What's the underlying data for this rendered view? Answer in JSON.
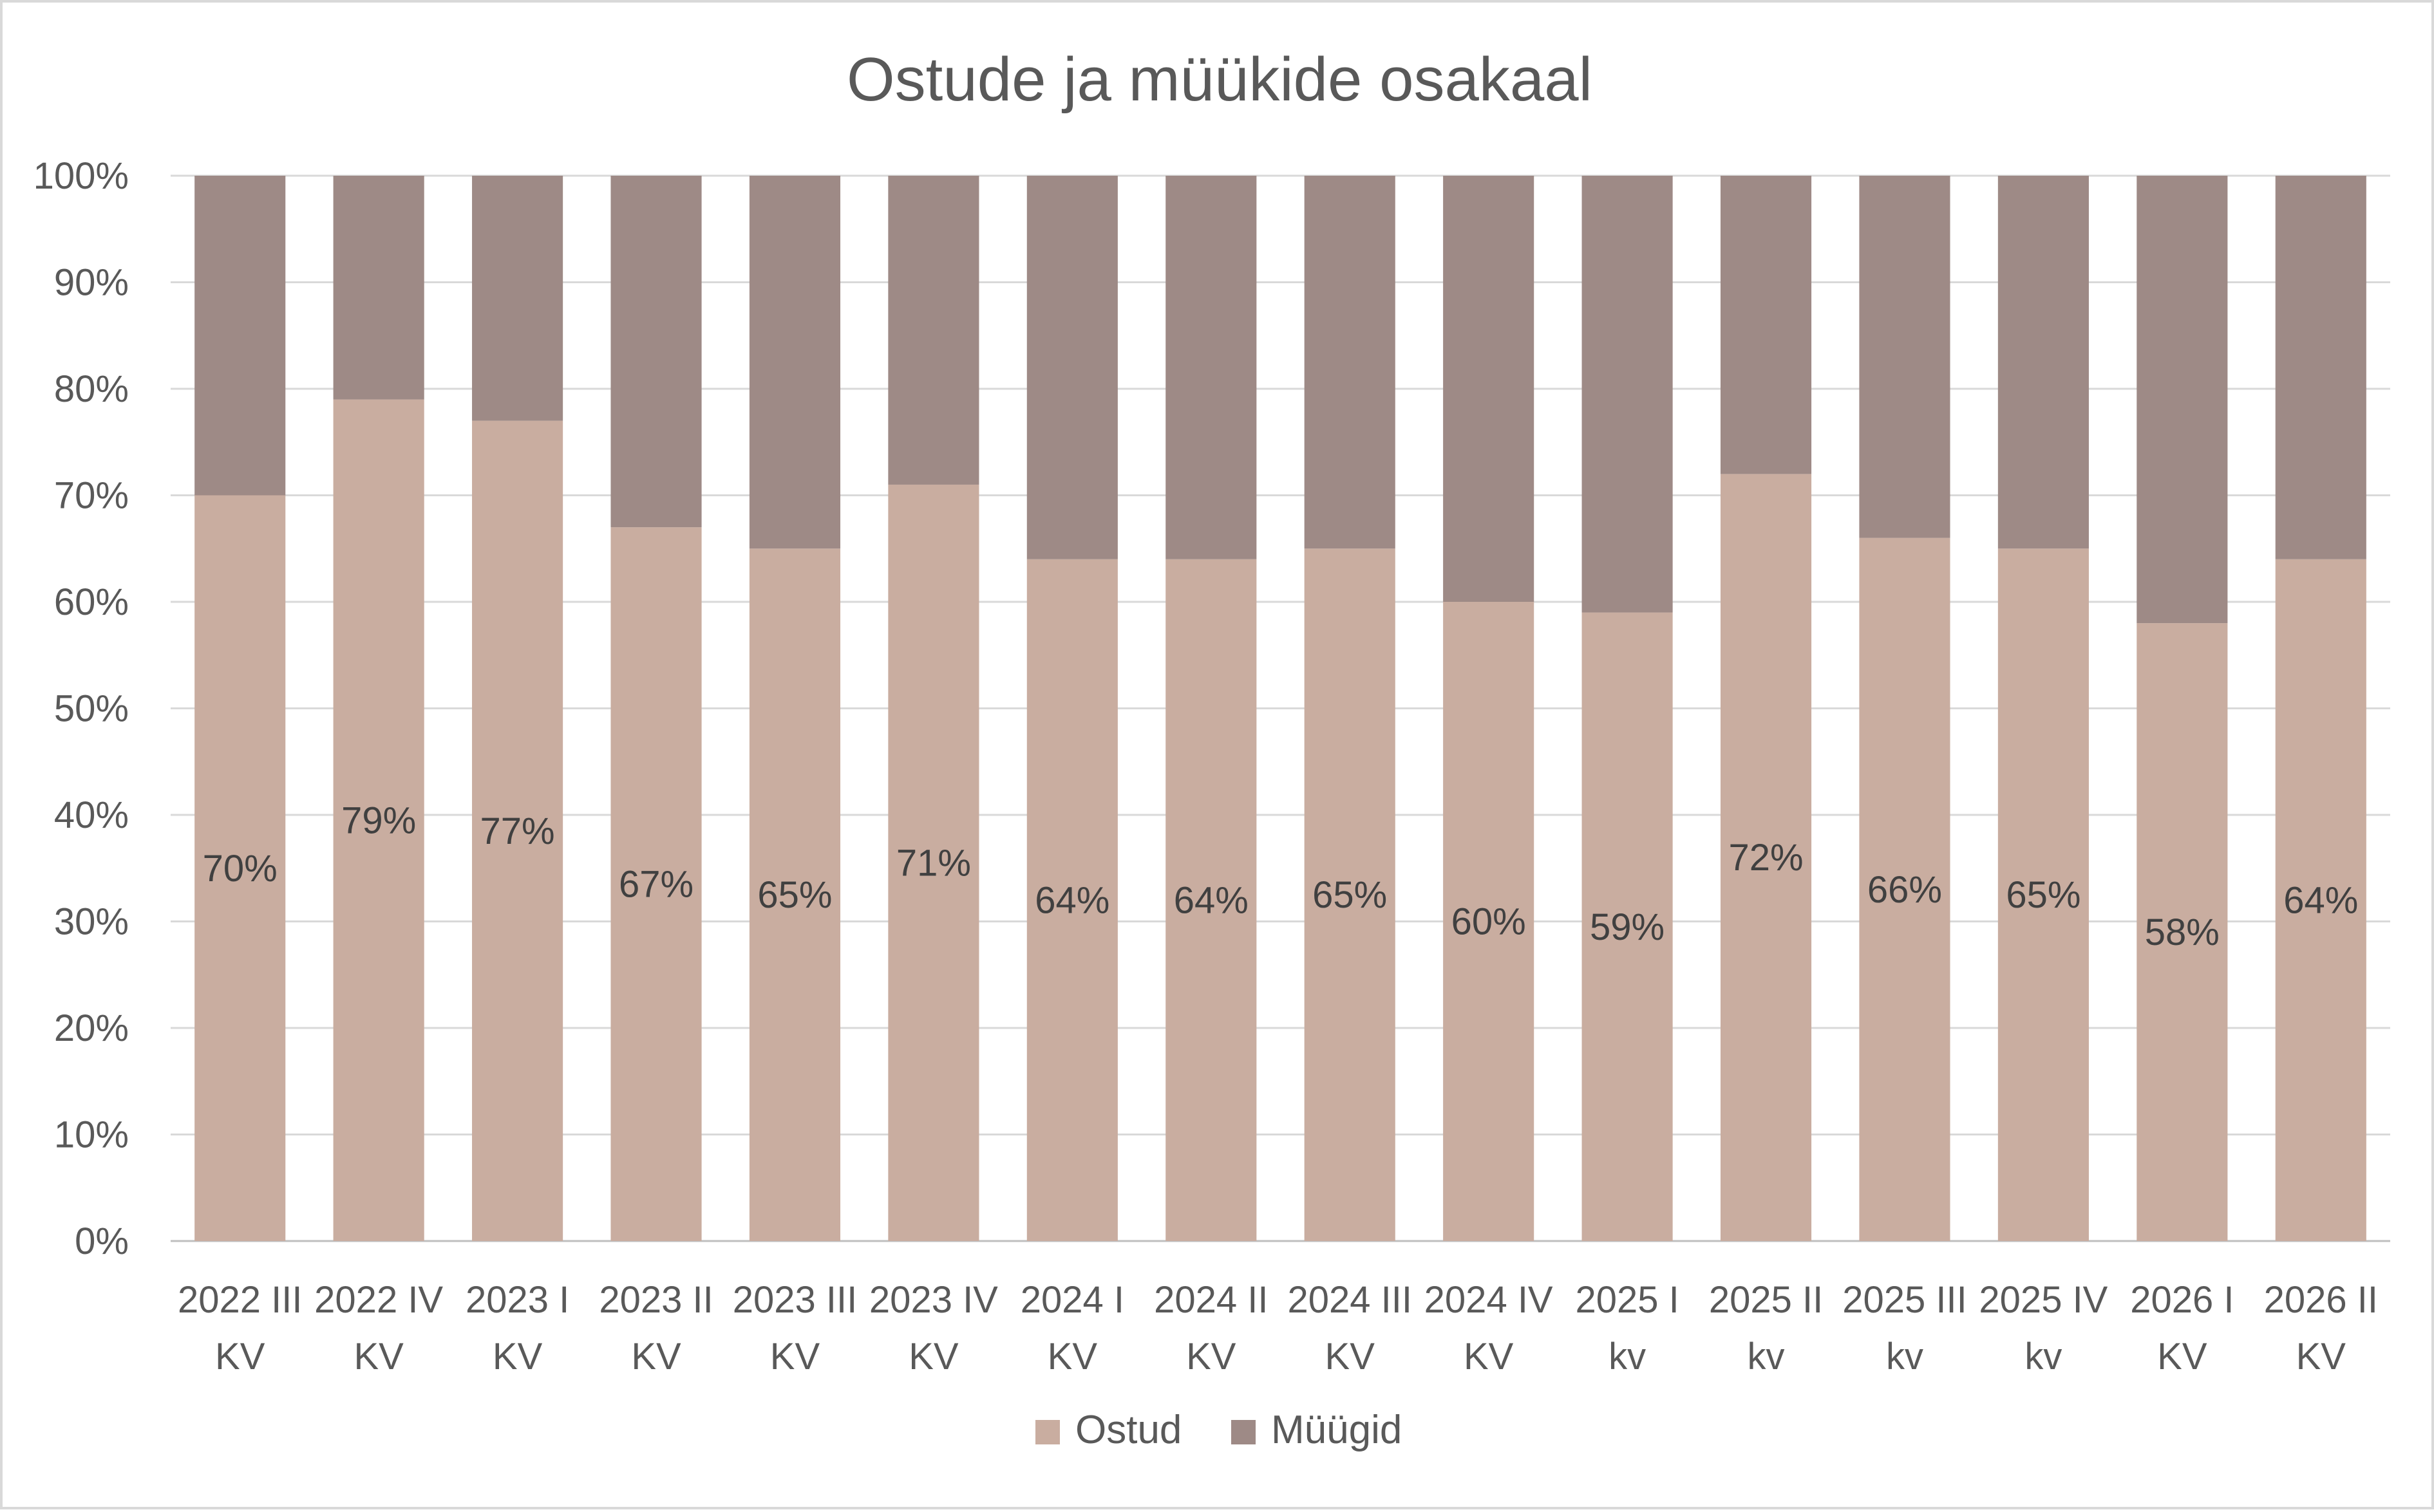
{
  "chart_data": {
    "type": "bar",
    "stacked": true,
    "percent_stacked": true,
    "title": "Ostude ja müükide osakaal",
    "xlabel": "",
    "ylabel": "",
    "ylim": [
      0,
      100
    ],
    "y_ticks": [
      "0%",
      "10%",
      "20%",
      "30%",
      "40%",
      "50%",
      "60%",
      "70%",
      "80%",
      "90%",
      "100%"
    ],
    "grid": true,
    "legend_position": "bottom",
    "categories": [
      [
        "2022 III",
        "KV"
      ],
      [
        "2022 IV",
        "KV"
      ],
      [
        "2023 I",
        "KV"
      ],
      [
        "2023 II",
        "KV"
      ],
      [
        "2023 III",
        "KV"
      ],
      [
        "2023 IV",
        "KV"
      ],
      [
        "2024 I",
        "KV"
      ],
      [
        "2024 II",
        "KV"
      ],
      [
        "2024 III",
        "KV"
      ],
      [
        "2024 IV",
        "KV"
      ],
      [
        "2025 I",
        "kv"
      ],
      [
        "2025 II",
        "kv"
      ],
      [
        "2025 III",
        "kv"
      ],
      [
        "2025 IV",
        "kv"
      ],
      [
        "2026 I",
        "KV"
      ],
      [
        "2026 II",
        "KV"
      ]
    ],
    "series": [
      {
        "name": "Ostud",
        "color": "#c9ada0",
        "values": [
          70,
          79,
          77,
          67,
          65,
          71,
          64,
          64,
          65,
          60,
          59,
          72,
          66,
          65,
          58,
          64
        ],
        "data_labels": [
          "70%",
          "79%",
          "77%",
          "67%",
          "65%",
          "71%",
          "64%",
          "64%",
          "65%",
          "60%",
          "59%",
          "72%",
          "66%",
          "65%",
          "58%",
          "64%"
        ]
      },
      {
        "name": "Müügid",
        "color": "#9e8a86",
        "values": [
          30,
          21,
          23,
          33,
          35,
          29,
          36,
          36,
          35,
          40,
          41,
          28,
          34,
          35,
          42,
          36
        ]
      }
    ],
    "colors": {
      "grid": "#d9d9d9",
      "axis": "#bfbfbf",
      "text": "#595959",
      "data_label": "#404040"
    }
  }
}
